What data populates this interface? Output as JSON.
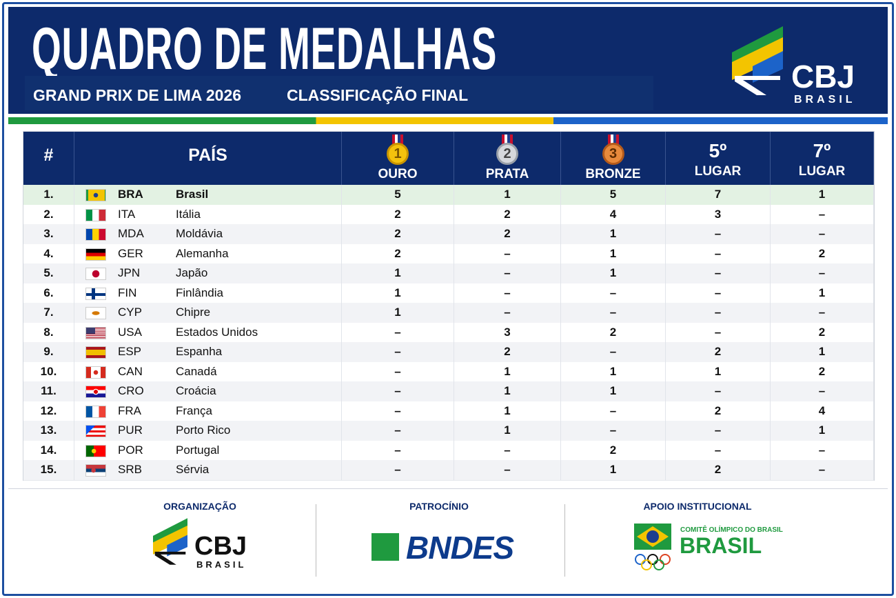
{
  "header": {
    "title": "QUADRO DE MEDALHAS",
    "event": "GRAND PRIX DE LIMA 2026",
    "stage": "CLASSIFICAÇÃO FINAL",
    "logo": {
      "mark": "CBJ",
      "sub": "BRASIL"
    }
  },
  "table": {
    "columns": [
      {
        "label": "#"
      },
      {
        "label": "PAÍS"
      },
      {
        "badge": "1",
        "label": "OURO"
      },
      {
        "badge": "2",
        "label": "PRATA"
      },
      {
        "badge": "3",
        "label": "BRONZE"
      },
      {
        "top": "5º",
        "label": "LUGAR"
      },
      {
        "top": "7º",
        "label": "LUGAR"
      }
    ],
    "rows": [
      [
        "1.",
        "BRA",
        "Brasil",
        5,
        1,
        5,
        7,
        1
      ],
      [
        "2.",
        "ITA",
        "Itália",
        2,
        2,
        4,
        3,
        "–"
      ],
      [
        "3.",
        "MDA",
        "Moldávia",
        2,
        2,
        1,
        "–",
        "–"
      ],
      [
        "4.",
        "GER",
        "Alemanha",
        2,
        "–",
        1,
        "–",
        2
      ],
      [
        "5.",
        "JPN",
        "Japão",
        1,
        "–",
        1,
        "–",
        "–"
      ],
      [
        "6.",
        "FIN",
        "Finlândia",
        1,
        "–",
        "–",
        "–",
        1
      ],
      [
        "7.",
        "CYP",
        "Chipre",
        1,
        "–",
        "–",
        "–",
        "–"
      ],
      [
        "8.",
        "USA",
        "Estados Unidos",
        "–",
        3,
        2,
        "–",
        2
      ],
      [
        "9.",
        "ESP",
        "Espanha",
        "–",
        2,
        "–",
        2,
        1
      ],
      [
        "10.",
        "CAN",
        "Canadá",
        "–",
        1,
        1,
        1,
        2
      ],
      [
        "11.",
        "CRO",
        "Croácia",
        "–",
        1,
        1,
        "–",
        "–"
      ],
      [
        "12.",
        "FRA",
        "França",
        "–",
        1,
        "–",
        2,
        4
      ],
      [
        "13.",
        "PUR",
        "Porto Rico",
        "–",
        1,
        "–",
        "–",
        1
      ],
      [
        "14.",
        "POR",
        "Portugal",
        "–",
        "–",
        2,
        "–",
        "–"
      ],
      [
        "15.",
        "SRB",
        "Sérvia",
        "–",
        "–",
        1,
        2,
        "–"
      ]
    ]
  },
  "footer": {
    "organization": {
      "label": "ORGANIZAÇÃO",
      "logo": "CBJ",
      "sub": "BRASIL"
    },
    "sponsor": {
      "label": "PATROCÍNIO",
      "logo": "BNDES"
    },
    "support": {
      "label": "APOIO INSTITUCIONAL",
      "caption": "COMITÊ OLÍMPICO DO BRASIL",
      "logo": "BRASIL"
    }
  }
}
